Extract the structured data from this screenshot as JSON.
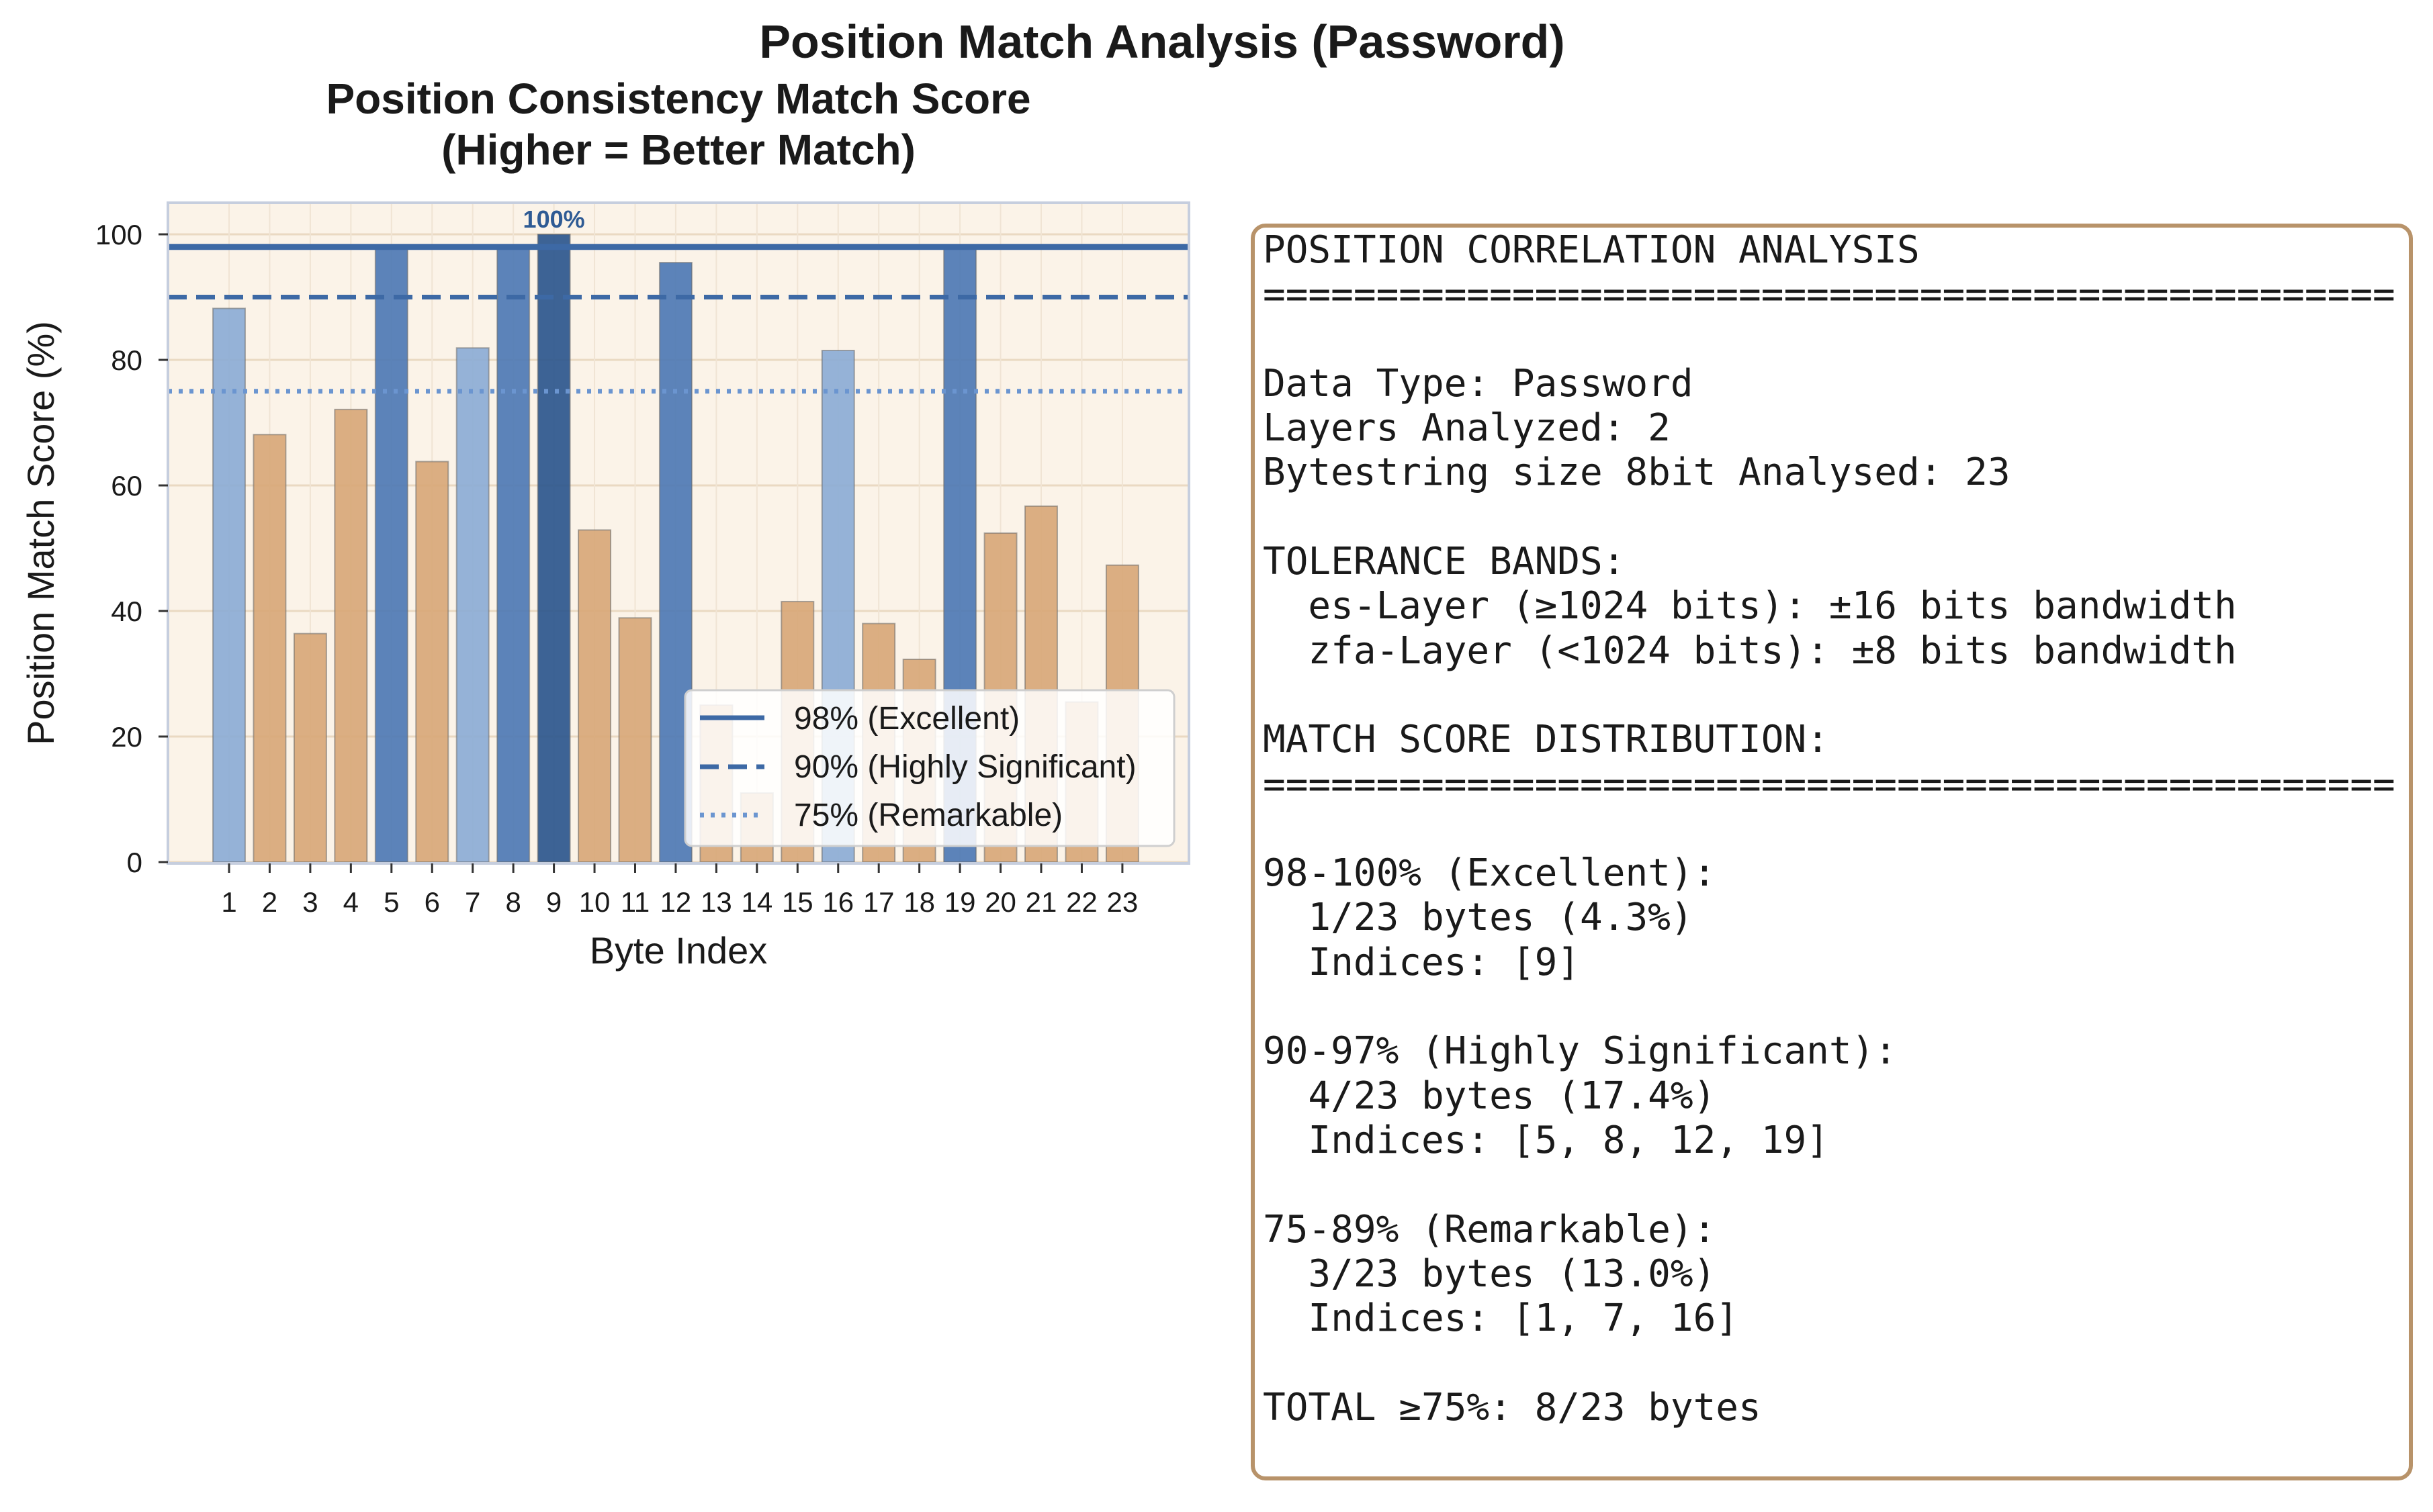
{
  "figure": {
    "suptitle": "Position Match Analysis (Password)"
  },
  "chart_data": {
    "type": "bar",
    "title_line1": "Position Consistency Match Score",
    "title_line2": "(Higher = Better Match)",
    "xlabel": "Byte Index",
    "ylabel": "Position Match Score (%)",
    "ylim": [
      0,
      105
    ],
    "yticks": [
      0,
      20,
      40,
      60,
      80,
      100
    ],
    "grid": true,
    "categories": [
      "1",
      "2",
      "3",
      "4",
      "5",
      "6",
      "7",
      "8",
      "9",
      "10",
      "11",
      "12",
      "13",
      "14",
      "15",
      "16",
      "17",
      "18",
      "19",
      "20",
      "21",
      "22",
      "23"
    ],
    "values": [
      88.2,
      68.1,
      36.4,
      72.1,
      98.0,
      63.8,
      81.9,
      98.0,
      100.0,
      52.9,
      38.9,
      95.5,
      25.0,
      11.0,
      41.5,
      81.5,
      38.0,
      32.3,
      98.0,
      52.4,
      56.7,
      25.5,
      47.3
    ],
    "categories_tier": [
      "remarkable",
      "below",
      "below",
      "below",
      "highly",
      "below",
      "remarkable",
      "highly",
      "excellent",
      "below",
      "below",
      "highly",
      "below",
      "below",
      "below",
      "remarkable",
      "below",
      "below",
      "highly",
      "below",
      "below",
      "below",
      "below"
    ],
    "tier_colors": {
      "excellent": "#2d578d",
      "highly": "#4e79b4",
      "remarkable": "#8cadd5",
      "below": "#d8a878"
    },
    "max_annotation": {
      "index": 9,
      "label": "100%"
    },
    "reference_lines": [
      {
        "value": 98,
        "style": "solid",
        "label": "98% (Excellent)",
        "color": "#3d69a5"
      },
      {
        "value": 90,
        "style": "dashed",
        "label": "90% (Highly Significant)",
        "color": "#3d69a5"
      },
      {
        "value": 75,
        "style": "dotted",
        "label": "75% (Remarkable)",
        "color": "#6b95d0"
      }
    ],
    "legend_position": "lower right",
    "plot_background": "#fbf3e8"
  },
  "panel": {
    "text": "POSITION CORRELATION ANALYSIS\n==================================================\n\nData Type: Password\nLayers Analyzed: 2\nBytestring size 8bit Analysed: 23\n\nTOLERANCE BANDS:\n  es-Layer (≥1024 bits): ±16 bits bandwidth\n  zfa-Layer (<1024 bits): ±8 bits bandwidth\n\nMATCH SCORE DISTRIBUTION:\n==================================================\n\n98-100% (Excellent):\n  1/23 bytes (4.3%)\n  Indices: [9]\n\n90-97% (Highly Significant):\n  4/23 bytes (17.4%)\n  Indices: [5, 8, 12, 19]\n\n75-89% (Remarkable):\n  3/23 bytes (13.0%)\n  Indices: [1, 7, 16]\n\nTOTAL ≥75%: 8/23 bytes",
    "border_color": "#b8936a"
  }
}
